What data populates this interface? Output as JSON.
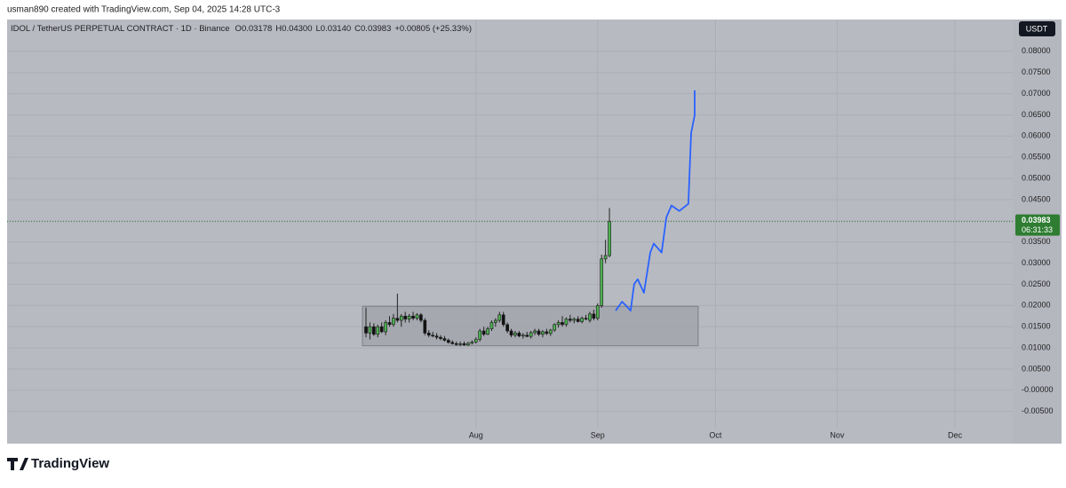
{
  "header": {
    "caption": "usman890 created with TradingView.com, Sep 04, 2025 14:28 UTC-3"
  },
  "footer": {
    "brand": "TradingView"
  },
  "chart_data": {
    "type": "candlestick",
    "title": "IDOL / TetherUS PERPETUAL CONTRACT · 1D · Binance",
    "ohlc_legend": [
      {
        "label": "O",
        "value": "0.03178"
      },
      {
        "label": "H",
        "value": "0.04300"
      },
      {
        "label": "L",
        "value": "0.03140"
      },
      {
        "label": "C",
        "value": "0.03983"
      }
    ],
    "change": "+0.00805 (+25.33%)",
    "currency": "USDT",
    "last_price": 0.03983,
    "countdown": "06:31:33",
    "up_color": "#4caf50",
    "down_color": "#111111",
    "grid": true,
    "ylim": [
      -0.0126,
      0.0875
    ],
    "yticks": [
      {
        "value": 0.08,
        "label": "0.08000"
      },
      {
        "value": 0.075,
        "label": "0.07500"
      },
      {
        "value": 0.07,
        "label": "0.07000"
      },
      {
        "value": 0.065,
        "label": "0.06500"
      },
      {
        "value": 0.06,
        "label": "0.06000"
      },
      {
        "value": 0.055,
        "label": "0.05500"
      },
      {
        "value": 0.05,
        "label": "0.05000"
      },
      {
        "value": 0.045,
        "label": "0.04500"
      },
      {
        "value": 0.04,
        "label": "0.04000"
      },
      {
        "value": 0.035,
        "label": "0.03500"
      },
      {
        "value": 0.03,
        "label": "0.03000"
      },
      {
        "value": 0.025,
        "label": "0.02500"
      },
      {
        "value": 0.02,
        "label": "0.02000"
      },
      {
        "value": 0.015,
        "label": "0.01500"
      },
      {
        "value": 0.01,
        "label": "0.01000"
      },
      {
        "value": 0.005,
        "label": "0.00500"
      },
      {
        "value": 0,
        "label": "-0.00000"
      },
      {
        "value": -0.005,
        "label": "-0.00500"
      }
    ],
    "xlim": [
      -91.4,
      164.7
    ],
    "xticks": [
      {
        "value": 28,
        "label": "Aug"
      },
      {
        "value": 59,
        "label": "Sep"
      },
      {
        "value": 89,
        "label": "Oct"
      },
      {
        "value": 120,
        "label": "Nov"
      },
      {
        "value": 150,
        "label": "Dec"
      }
    ],
    "open": [
      0.015,
      0.0135,
      0.015,
      0.0132,
      0.015,
      0.0138,
      0.016,
      0.0155,
      0.017,
      0.0165,
      0.0175,
      0.0168,
      0.0175,
      0.017,
      0.0178,
      0.0165,
      0.0135,
      0.013,
      0.0128,
      0.0125,
      0.0122,
      0.0118,
      0.0113,
      0.011,
      0.0108,
      0.011,
      0.0107,
      0.0111,
      0.0114,
      0.012,
      0.014,
      0.0132,
      0.0145,
      0.016,
      0.0165,
      0.0178,
      0.0155,
      0.014,
      0.013,
      0.0135,
      0.0128,
      0.013,
      0.0127,
      0.0136,
      0.014,
      0.0132,
      0.0138,
      0.0134,
      0.0142,
      0.0155,
      0.016,
      0.0155,
      0.0168,
      0.0165,
      0.0168,
      0.0162,
      0.017,
      0.0165,
      0.018,
      0.017,
      0.02,
      0.031,
      0.03178
    ],
    "high": [
      0.0195,
      0.016,
      0.0158,
      0.0155,
      0.016,
      0.0165,
      0.0175,
      0.018,
      0.0228,
      0.018,
      0.0185,
      0.018,
      0.0185,
      0.0182,
      0.0182,
      0.017,
      0.0142,
      0.0138,
      0.0135,
      0.013,
      0.0128,
      0.0122,
      0.0118,
      0.0115,
      0.0115,
      0.0115,
      0.0114,
      0.0118,
      0.0125,
      0.0145,
      0.015,
      0.015,
      0.0165,
      0.017,
      0.0185,
      0.0185,
      0.016,
      0.0145,
      0.014,
      0.014,
      0.0135,
      0.0138,
      0.014,
      0.0145,
      0.0145,
      0.0142,
      0.0145,
      0.0145,
      0.0158,
      0.0165,
      0.0175,
      0.0172,
      0.0178,
      0.0172,
      0.0175,
      0.0174,
      0.0178,
      0.0185,
      0.019,
      0.0205,
      0.032,
      0.0355,
      0.043
    ],
    "low": [
      0.0125,
      0.012,
      0.0128,
      0.0125,
      0.0135,
      0.013,
      0.015,
      0.015,
      0.016,
      0.015,
      0.016,
      0.016,
      0.0165,
      0.0165,
      0.016,
      0.013,
      0.0125,
      0.0125,
      0.012,
      0.0118,
      0.0115,
      0.011,
      0.0108,
      0.0105,
      0.0104,
      0.0105,
      0.0104,
      0.0108,
      0.011,
      0.0115,
      0.0128,
      0.013,
      0.014,
      0.015,
      0.016,
      0.015,
      0.0135,
      0.0125,
      0.0125,
      0.0125,
      0.0122,
      0.0125,
      0.0122,
      0.013,
      0.0128,
      0.0125,
      0.013,
      0.0128,
      0.0138,
      0.0148,
      0.015,
      0.015,
      0.016,
      0.0158,
      0.016,
      0.0158,
      0.0165,
      0.016,
      0.0165,
      0.0165,
      0.0195,
      0.03,
      0.0314
    ],
    "close": [
      0.0135,
      0.015,
      0.0132,
      0.015,
      0.0138,
      0.016,
      0.0155,
      0.017,
      0.0165,
      0.0175,
      0.0168,
      0.0175,
      0.017,
      0.0178,
      0.0165,
      0.0135,
      0.013,
      0.0128,
      0.0125,
      0.0122,
      0.0118,
      0.0113,
      0.011,
      0.0108,
      0.011,
      0.0107,
      0.0111,
      0.0114,
      0.012,
      0.014,
      0.0132,
      0.0145,
      0.016,
      0.0165,
      0.0178,
      0.0155,
      0.014,
      0.013,
      0.0135,
      0.0128,
      0.013,
      0.0127,
      0.0136,
      0.014,
      0.0132,
      0.0138,
      0.0134,
      0.0142,
      0.0155,
      0.016,
      0.0155,
      0.0168,
      0.0165,
      0.0168,
      0.0162,
      0.017,
      0.0168,
      0.018,
      0.017,
      0.02,
      0.031,
      0.0318,
      0.03983
    ],
    "range_box": {
      "x": [
        -0.9,
        84.6
      ],
      "y": [
        0.0105,
        0.0198
      ],
      "color": "#9a9ca4"
    },
    "projection": {
      "color": "#2962ff",
      "x": [
        63.6,
        65.2,
        66.3,
        67.4,
        68.3,
        69.2,
        70.8,
        72.4,
        73.3,
        75.3,
        76.5,
        77.8,
        79.8,
        82.1,
        82.8,
        83.7,
        83.7
      ],
      "values": [
        0.0188,
        0.0209,
        0.0199,
        0.0188,
        0.0251,
        0.0262,
        0.023,
        0.0325,
        0.0346,
        0.0325,
        0.0408,
        0.0436,
        0.0423,
        0.044,
        0.0607,
        0.0649,
        0.0708
      ]
    }
  }
}
